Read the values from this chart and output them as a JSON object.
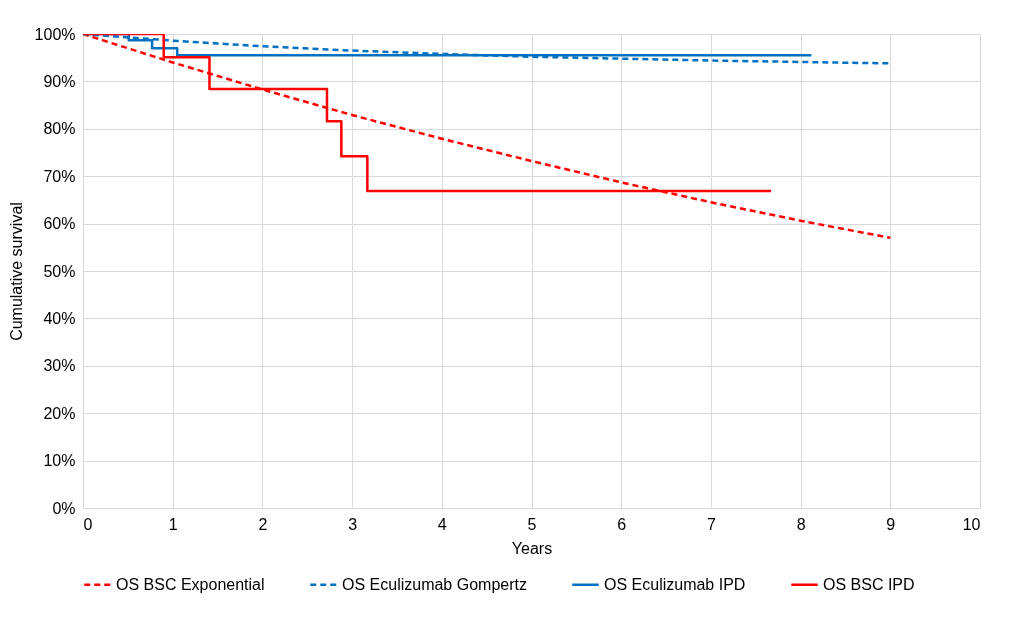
{
  "chart_data": {
    "type": "line",
    "xlabel": "Years",
    "ylabel": "Cumulative survival",
    "xlim": [
      0,
      10
    ],
    "xticks": [
      0,
      1,
      2,
      3,
      4,
      5,
      6,
      7,
      8,
      9,
      10
    ],
    "ylim": [
      0,
      100
    ],
    "yticks": [
      {
        "value": 0,
        "label": "0%"
      },
      {
        "value": 10,
        "label": "10%"
      },
      {
        "value": 20,
        "label": "20%"
      },
      {
        "value": 30,
        "label": "30%"
      },
      {
        "value": 40,
        "label": "40%"
      },
      {
        "value": 50,
        "label": "50%"
      },
      {
        "value": 60,
        "label": "60%"
      },
      {
        "value": 70,
        "label": "70%"
      },
      {
        "value": 80,
        "label": "80%"
      },
      {
        "value": 90,
        "label": "90%"
      },
      {
        "value": 100,
        "label": "100%"
      }
    ],
    "grid": true,
    "legend": "bottom",
    "series": [
      {
        "name": "OS BSC Exponential",
        "line_style": "dashed",
        "color": "#ff0000",
        "x": [
          0,
          1,
          2,
          3,
          4,
          5,
          6,
          7,
          8,
          9
        ],
        "values": [
          100,
          94,
          88.3,
          82.9,
          77.9,
          73.2,
          68.7,
          64.5,
          60.6,
          57
        ]
      },
      {
        "name": "OS Eculizumab Gompertz",
        "line_style": "dashed",
        "color": "#0070c0",
        "x": [
          0,
          1,
          2,
          3,
          4,
          5,
          6,
          7,
          8,
          9
        ],
        "values": [
          100,
          98.6,
          97.4,
          96.5,
          95.8,
          95.2,
          94.8,
          94.4,
          94.1,
          93.8
        ]
      },
      {
        "name": "OS Eculizumab IPD",
        "type": "step",
        "line_style": "solid",
        "color": "#0070c0",
        "x": [
          0,
          0.51,
          0.77,
          1.05,
          8.12
        ],
        "values": [
          100,
          98.7,
          97,
          95.5,
          95.5
        ]
      },
      {
        "name": "OS BSC IPD",
        "type": "step",
        "line_style": "solid",
        "color": "#ff0000",
        "x": [
          0,
          0.9,
          1.41,
          2.72,
          2.88,
          3.17,
          7.67
        ],
        "values": [
          100,
          95.1,
          88.4,
          81.6,
          74.2,
          66.9,
          66.9
        ]
      }
    ]
  }
}
